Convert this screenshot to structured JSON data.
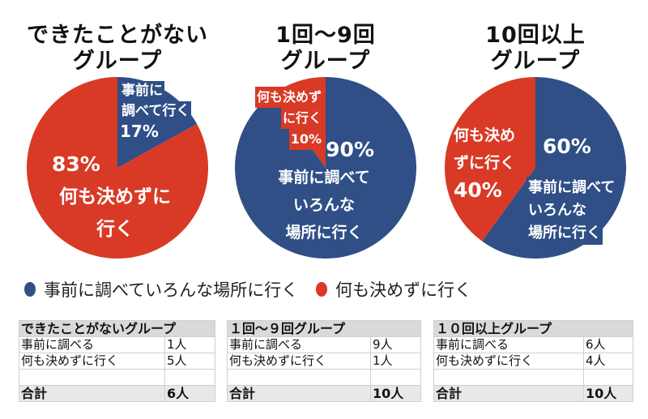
{
  "colors": {
    "planned": "#2f4f86",
    "unplanned": "#d83a26"
  },
  "chart_data": [
    {
      "type": "pie",
      "title": [
        "できたことがない",
        "グループ"
      ],
      "categories": [
        "事前に調べていろんな場所に行く",
        "何も決めずに行く"
      ],
      "values": [
        17,
        83
      ],
      "labels": [
        {
          "lines": [
            "事前に",
            "調べて行く",
            "17%"
          ]
        },
        {
          "lines": [
            "83%",
            "何も決めずに",
            "行く"
          ]
        }
      ]
    },
    {
      "type": "pie",
      "title": [
        "1回〜9回",
        "グループ"
      ],
      "categories": [
        "事前に調べていろんな場所に行く",
        "何も決めずに行く"
      ],
      "values": [
        90,
        10
      ],
      "labels": [
        {
          "lines": [
            "90%",
            "事前に調べて",
            "いろんな",
            "場所に行く"
          ]
        },
        {
          "lines": [
            "何も決めず",
            "に行く",
            "10%"
          ]
        }
      ]
    },
    {
      "type": "pie",
      "title": [
        "10回以上",
        "グループ"
      ],
      "categories": [
        "事前に調べていろんな場所に行く",
        "何も決めずに行く"
      ],
      "values": [
        60,
        40
      ],
      "labels": [
        {
          "lines": [
            "60%",
            "事前に調べて",
            "いろんな",
            "場所に行く"
          ]
        },
        {
          "lines": [
            "何も決め",
            "ずに行く",
            "40%"
          ]
        }
      ]
    }
  ],
  "legend": [
    {
      "label": "事前に調べていろんな場所に行く",
      "color": "#2f4f86"
    },
    {
      "label": "何も決めずに行く",
      "color": "#d83a26"
    }
  ],
  "tables": [
    {
      "title": "できたことがないグループ",
      "rows": [
        {
          "label": "事前に調べる",
          "value": "1人"
        },
        {
          "label": "何も決めずに行く",
          "value": "5人"
        }
      ],
      "total_label": "合計",
      "total_value": "6人"
    },
    {
      "title": "１回〜９回グループ",
      "rows": [
        {
          "label": "事前に調べる",
          "value": "9人"
        },
        {
          "label": "何も決めずに行く",
          "value": "1人"
        }
      ],
      "total_label": "合計",
      "total_value": "10人"
    },
    {
      "title": "１０回以上グループ",
      "rows": [
        {
          "label": "事前に調べる",
          "value": "6人"
        },
        {
          "label": "何も決めずに行く",
          "value": "4人"
        }
      ],
      "total_label": "合計",
      "total_value": "10人"
    }
  ]
}
